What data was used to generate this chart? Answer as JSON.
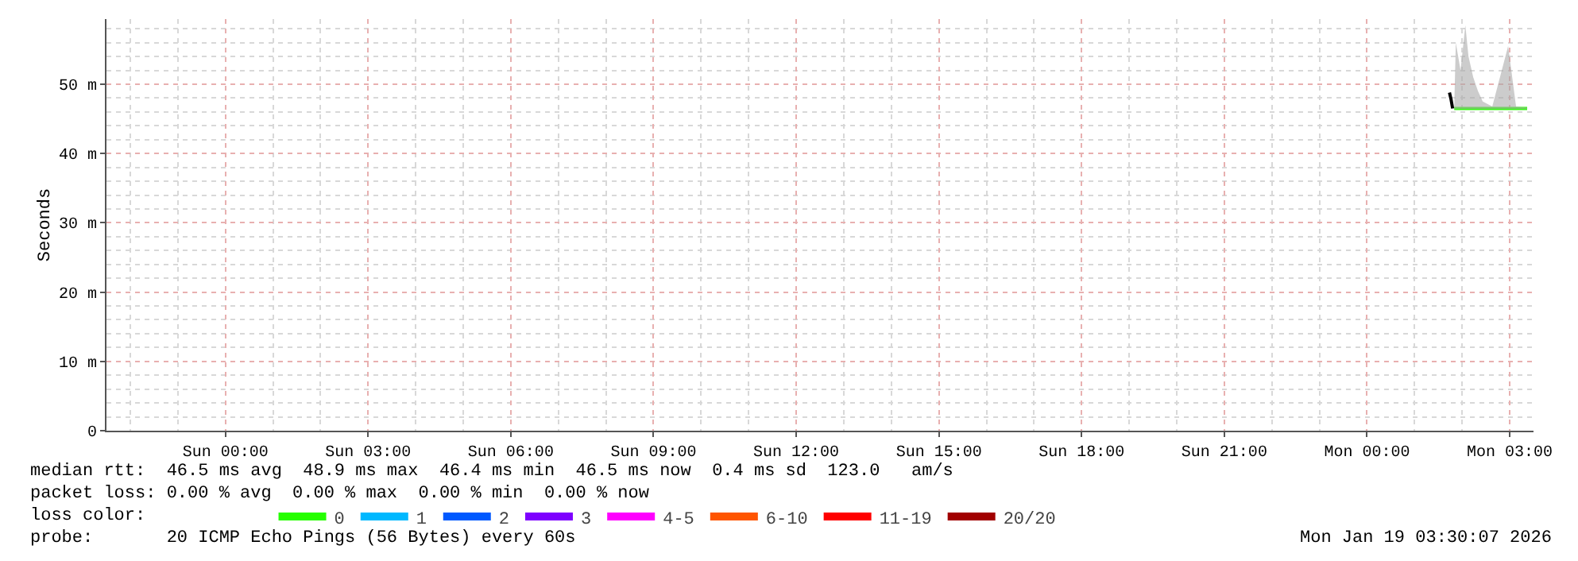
{
  "chart_data": {
    "type": "line",
    "ylabel": "Seconds",
    "xlim": [
      "2026-01-17T21:30",
      "2026-01-19T03:30"
    ],
    "xticks": [
      {
        "value": "2026-01-18T00:00",
        "label": "Sun 00:00"
      },
      {
        "value": "2026-01-18T03:00",
        "label": "Sun 03:00"
      },
      {
        "value": "2026-01-18T06:00",
        "label": "Sun 06:00"
      },
      {
        "value": "2026-01-18T09:00",
        "label": "Sun 09:00"
      },
      {
        "value": "2026-01-18T12:00",
        "label": "Sun 12:00"
      },
      {
        "value": "2026-01-18T15:00",
        "label": "Sun 15:00"
      },
      {
        "value": "2026-01-18T18:00",
        "label": "Sun 18:00"
      },
      {
        "value": "2026-01-18T21:00",
        "label": "Sun 21:00"
      },
      {
        "value": "2026-01-19T00:00",
        "label": "Mon 00:00"
      },
      {
        "value": "2026-01-19T03:00",
        "label": "Mon 03:00"
      }
    ],
    "ylim": [
      0,
      59.4
    ],
    "yticks": [
      0,
      {
        "value": 10,
        "label": "10 m"
      },
      {
        "value": 20,
        "label": "20 m"
      },
      {
        "value": 30,
        "label": "30 m"
      },
      {
        "value": 40,
        "label": "40 m"
      },
      {
        "value": 50,
        "label": "50 m"
      }
    ],
    "grid": true,
    "legend": "bottom",
    "legend_title": "loss color:",
    "series": [
      {
        "name": "0",
        "color": "#26ff00",
        "x": [
          "2026-01-19T01:50",
          "2026-01-19T01:52",
          "2026-01-19T01:58",
          "2026-01-19T02:04",
          "2026-01-19T02:08",
          "2026-01-19T02:14",
          "2026-01-19T02:20",
          "2026-01-19T02:26",
          "2026-01-19T02:38",
          "2026-01-19T02:58",
          "2026-01-19T03:08",
          "2026-01-19T03:22"
        ],
        "values": [
          46.5,
          46.5,
          46.5,
          46.5,
          46.5,
          46.5,
          46.5,
          46.5,
          46.5,
          46.5,
          46.5,
          46.5
        ],
        "lower": [
          46.4,
          46.4,
          46.4,
          46.4,
          46.4,
          46.4,
          46.4,
          46.4,
          46.4,
          46.4,
          46.4,
          46.4
        ],
        "upper": [
          46.6,
          56,
          52,
          58.5,
          54,
          51,
          49,
          47.5,
          46.8,
          55.5,
          46.8,
          46.6
        ]
      },
      {
        "color": "#000000",
        "x": [
          "2026-01-19T01:44",
          "2026-01-19T01:46",
          "2026-01-19T01:48"
        ],
        "values": [
          48.8,
          47.8,
          46.5
        ]
      },
      {
        "name": "1",
        "color": "#00b8ff"
      },
      {
        "name": "2",
        "color": "#0059ff"
      },
      {
        "name": "3",
        "color": "#7e00ff"
      },
      {
        "name": "4-5",
        "color": "#ff00ff"
      },
      {
        "name": "6-10",
        "color": "#ff5500"
      },
      {
        "name": "11-19",
        "color": "#ff0000"
      },
      {
        "name": "20/20",
        "color": "#a10000"
      }
    ],
    "annotations": [
      "median rtt:  46.5 ms avg  48.9 ms max  46.4 ms min  46.5 ms now  0.4 ms sd  123.0   am/s",
      "packet loss: 0.00 % avg  0.00 % max  0.00 % min  0.00 % now",
      "probe:       20 ICMP Echo Pings (56 Bytes) every 60s",
      "Mon Jan 19 03:30:07 2026"
    ]
  }
}
